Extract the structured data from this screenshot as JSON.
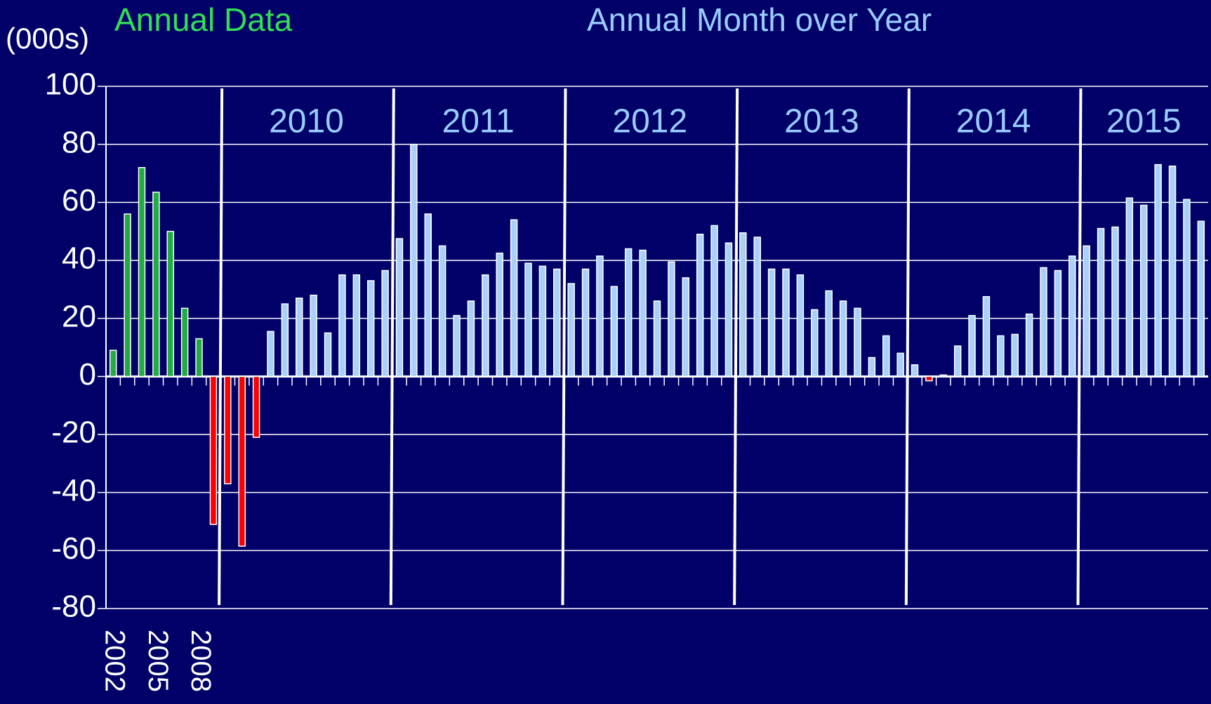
{
  "chart_data": {
    "type": "bar",
    "y_label": "(000s)",
    "categories": [
      "2002",
      null,
      null,
      "2005",
      null,
      null,
      "2008",
      null,
      null,
      null,
      null,
      null,
      null,
      null,
      null,
      null,
      null,
      null,
      null,
      null,
      null,
      null,
      null,
      null,
      null,
      null,
      null,
      null,
      null,
      null,
      null,
      null,
      null,
      null,
      null,
      null,
      null,
      null,
      null,
      null,
      null,
      null,
      null,
      null,
      null,
      null,
      null,
      null,
      null,
      null,
      null,
      null,
      null,
      null,
      null,
      null,
      null,
      null,
      null,
      null,
      null,
      null,
      null,
      null,
      null,
      null,
      null,
      null,
      null,
      null,
      null,
      null,
      null,
      null,
      null,
      null,
      null
    ],
    "year_labels": [
      "2010",
      "2011",
      "2012",
      "2013",
      "2014",
      "2015"
    ],
    "series": [
      {
        "name": "Annual Data",
        "color": "#22aa44",
        "values": [
          9,
          56,
          72,
          63.5,
          50,
          23.5,
          13,
          -51,
          null,
          null,
          null,
          null,
          null,
          null,
          null,
          null,
          null,
          null,
          null,
          null,
          null,
          null,
          null,
          null,
          null,
          null,
          null,
          null,
          null,
          null,
          null,
          null,
          null,
          null,
          null,
          null,
          null,
          null,
          null,
          null,
          null,
          null,
          null,
          null,
          null,
          null,
          null,
          null,
          null,
          null,
          null,
          null,
          null,
          null,
          null,
          null,
          null,
          null,
          null,
          null,
          null,
          null,
          null,
          null,
          null,
          null,
          null,
          null,
          null,
          null,
          null,
          null,
          null,
          null,
          null,
          null,
          null
        ]
      },
      {
        "name": "Annual Month over Year",
        "color": "#a8d0f8",
        "values": [
          null,
          null,
          null,
          null,
          null,
          null,
          null,
          null,
          -37,
          -58.5,
          -21,
          15.5,
          25,
          27,
          28,
          15,
          35,
          35,
          33,
          36.5,
          47.5,
          80,
          56,
          45,
          21,
          26,
          35,
          42.5,
          54,
          39,
          38,
          37,
          32,
          37,
          41.5,
          31,
          44,
          43.5,
          26,
          39.5,
          34,
          49,
          52,
          46,
          49.5,
          48,
          37,
          37,
          35,
          23,
          29.5,
          26,
          23.5,
          6.5,
          14,
          8,
          4,
          -1.5,
          0.5,
          10.5,
          21,
          27.5,
          14,
          14.5,
          21.5,
          37.5,
          36.5,
          41.5,
          45,
          51,
          51.5,
          61.5,
          59,
          73,
          72.5,
          61,
          53.5
        ]
      }
    ],
    "negative_color": "#ff0000",
    "ylim": [
      -80,
      100
    ],
    "yticks": [
      -80,
      -60,
      -40,
      -20,
      0,
      20,
      40,
      60,
      80,
      100
    ],
    "grid": true
  }
}
